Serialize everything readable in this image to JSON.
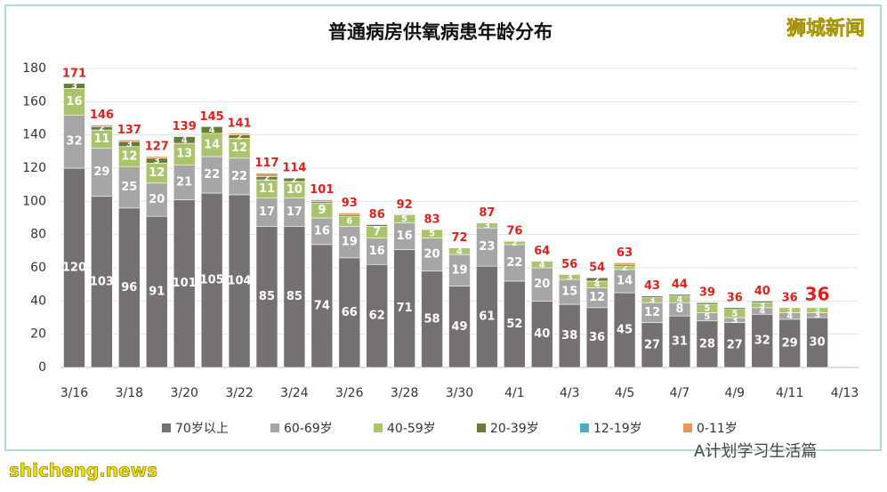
{
  "chart_data": {
    "type": "stacked_bar",
    "title": "普通病房供氧病患年龄分布",
    "categories": [
      "3/16",
      null,
      "3/18",
      null,
      "3/20",
      null,
      "3/22",
      null,
      "3/24",
      null,
      "3/26",
      null,
      "3/28",
      null,
      "3/30",
      null,
      "4/1",
      null,
      "4/3",
      null,
      "4/5",
      null,
      "4/7",
      null,
      "4/9",
      null,
      "4/11",
      null,
      "4/13"
    ],
    "series": [
      {
        "name": "70岁以上",
        "color": "#767171",
        "values": [
          120,
          103,
          96,
          91,
          101,
          105,
          104,
          85,
          85,
          74,
          66,
          62,
          71,
          58,
          49,
          61,
          52,
          40,
          38,
          36,
          45,
          27,
          31,
          28,
          27,
          32,
          29,
          30,
          null
        ]
      },
      {
        "name": "60-69岁",
        "color": "#a6a6a6",
        "values": [
          32,
          29,
          25,
          20,
          21,
          22,
          22,
          17,
          17,
          16,
          19,
          16,
          16,
          20,
          19,
          23,
          22,
          20,
          15,
          12,
          14,
          12,
          8,
          5,
          3,
          4,
          4,
          3,
          null
        ]
      },
      {
        "name": "40-59岁",
        "color": "#a9c46c",
        "values": [
          16,
          11,
          12,
          12,
          13,
          14,
          12,
          11,
          10,
          9,
          6,
          7,
          5,
          5,
          4,
          3,
          2,
          4,
          3,
          4,
          2,
          3,
          4,
          5,
          5,
          3,
          3,
          3,
          null
        ]
      },
      {
        "name": "20-39岁",
        "color": "#6b7a3a",
        "values": [
          3,
          2,
          3,
          3,
          4,
          4,
          2,
          2,
          2,
          1,
          1,
          1,
          0,
          0,
          0,
          0,
          0,
          0,
          0,
          2,
          1,
          1,
          1,
          1,
          1,
          1,
          0,
          0,
          null
        ]
      },
      {
        "name": "12-19岁",
        "color": "#4bacc6",
        "values": [
          0,
          0,
          0,
          0,
          0,
          0,
          0,
          0,
          0,
          0,
          0,
          0,
          0,
          0,
          0,
          0,
          0,
          0,
          0,
          0,
          0,
          0,
          0,
          0,
          0,
          0,
          0,
          0,
          null
        ]
      },
      {
        "name": "0-11岁",
        "color": "#e5985a",
        "values": [
          0,
          1,
          1,
          1,
          0,
          0,
          1,
          2,
          0,
          1,
          1,
          0,
          0,
          0,
          0,
          0,
          0,
          0,
          0,
          0,
          1,
          0,
          0,
          0,
          0,
          0,
          0,
          0,
          null
        ]
      }
    ],
    "totals": [
      171,
      146,
      137,
      127,
      139,
      145,
      141,
      117,
      114,
      101,
      93,
      86,
      92,
      83,
      72,
      87,
      76,
      64,
      56,
      54,
      63,
      43,
      44,
      39,
      36,
      40,
      36,
      36,
      null
    ],
    "ylim": [
      0,
      180
    ],
    "yticks": [
      0,
      20,
      40,
      60,
      80,
      100,
      120,
      140,
      160,
      180
    ],
    "grid": true,
    "watermarks": [
      "狮城新闻",
      "shicheng.news",
      "A计划学习生活篇"
    ]
  }
}
